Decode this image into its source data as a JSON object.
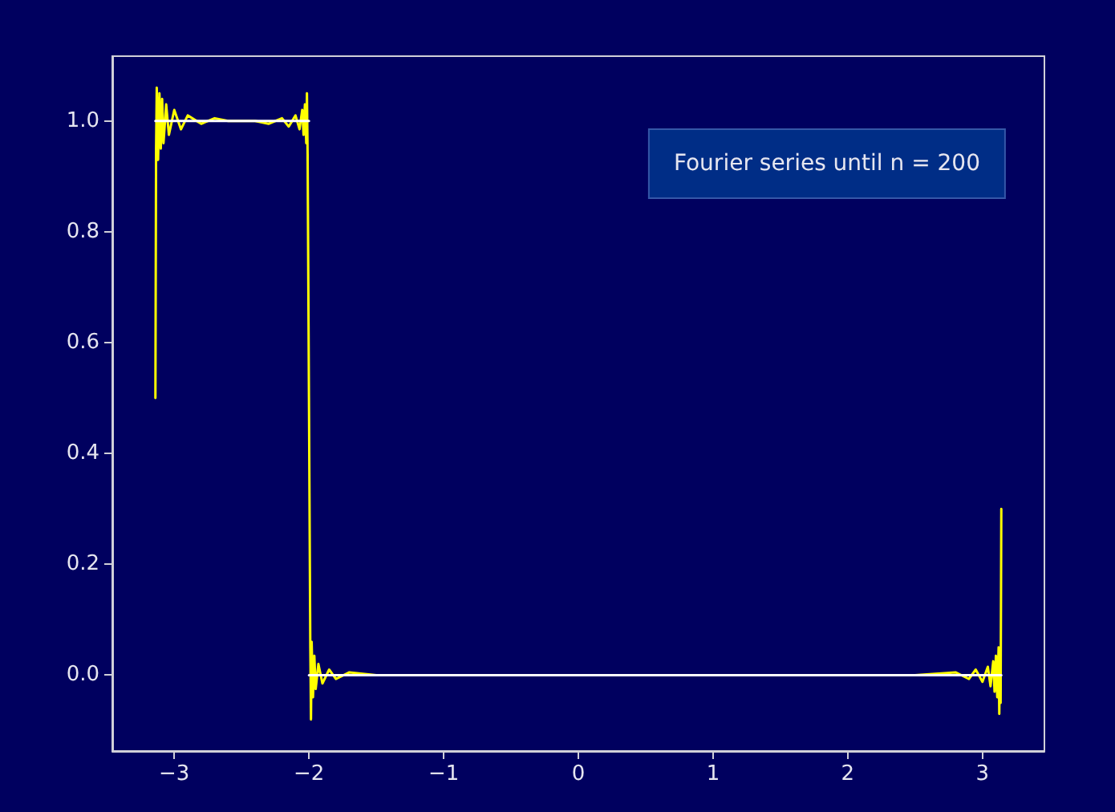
{
  "chart_data": {
    "type": "line",
    "annotations": [
      "Fourier series until n = 200"
    ],
    "series": [
      {
        "color": "#ffff00",
        "x": [
          -3.14,
          -3.135,
          -3.13,
          -3.12,
          -3.11,
          -3.1,
          -3.09,
          -3.08,
          -3.06,
          -3.04,
          -3.0,
          -2.95,
          -2.9,
          -2.8,
          -2.7,
          -2.6,
          -2.5,
          -2.4,
          -2.3,
          -2.2,
          -2.15,
          -2.1,
          -2.07,
          -2.05,
          -2.04,
          -2.03,
          -2.02,
          -2.015,
          -2.01,
          -2.0,
          -1.99,
          -1.985,
          -1.98,
          -1.97,
          -1.96,
          -1.95,
          -1.93,
          -1.9,
          -1.85,
          -1.8,
          -1.7,
          -1.5,
          -1.0,
          0.0,
          1.0,
          2.0,
          2.5,
          2.8,
          2.9,
          2.95,
          3.0,
          3.04,
          3.06,
          3.08,
          3.09,
          3.1,
          3.11,
          3.12,
          3.125,
          3.13,
          3.135,
          3.14
        ],
        "values": [
          0.5,
          0.95,
          1.06,
          0.93,
          1.05,
          0.95,
          1.04,
          0.96,
          1.03,
          0.975,
          1.02,
          0.985,
          1.01,
          0.995,
          1.005,
          1.0,
          1.0,
          1.0,
          0.995,
          1.005,
          0.99,
          1.01,
          0.985,
          1.02,
          0.975,
          1.03,
          0.96,
          1.05,
          0.94,
          0.5,
          0.05,
          -0.08,
          0.06,
          -0.04,
          0.035,
          -0.025,
          0.02,
          -0.015,
          0.01,
          -0.007,
          0.005,
          0.0,
          0.0,
          0.0,
          0.0,
          0.0,
          0.0,
          0.005,
          -0.007,
          0.01,
          -0.012,
          0.015,
          -0.02,
          0.025,
          -0.03,
          0.035,
          -0.04,
          0.05,
          -0.07,
          0.04,
          -0.05,
          0.3
        ]
      },
      {
        "color": "#ffffff",
        "x": [
          -3.14,
          -2.0
        ],
        "values": [
          1.0,
          1.0
        ]
      },
      {
        "color": "#ffffff",
        "x": [
          -2.0,
          3.14
        ],
        "values": [
          0.0,
          0.0
        ]
      }
    ],
    "xlim": [
      -3.46,
      3.46
    ],
    "ylim": [
      -0.137,
      1.117
    ],
    "xticks": [
      {
        "value": -3,
        "label": "−3"
      },
      {
        "value": -2,
        "label": "−2"
      },
      {
        "value": -1,
        "label": "−1"
      },
      0,
      1,
      2,
      3
    ],
    "yticks": [
      {
        "value": 0,
        "label": "0.0"
      },
      {
        "value": 0.2,
        "label": "0.2"
      },
      {
        "value": 0.4,
        "label": "0.4"
      },
      {
        "value": 0.6,
        "label": "0.6"
      },
      {
        "value": 0.8,
        "label": "0.8"
      },
      {
        "value": 1,
        "label": "1.0"
      }
    ],
    "grid": false,
    "marker": "none",
    "line_style": "solid"
  }
}
